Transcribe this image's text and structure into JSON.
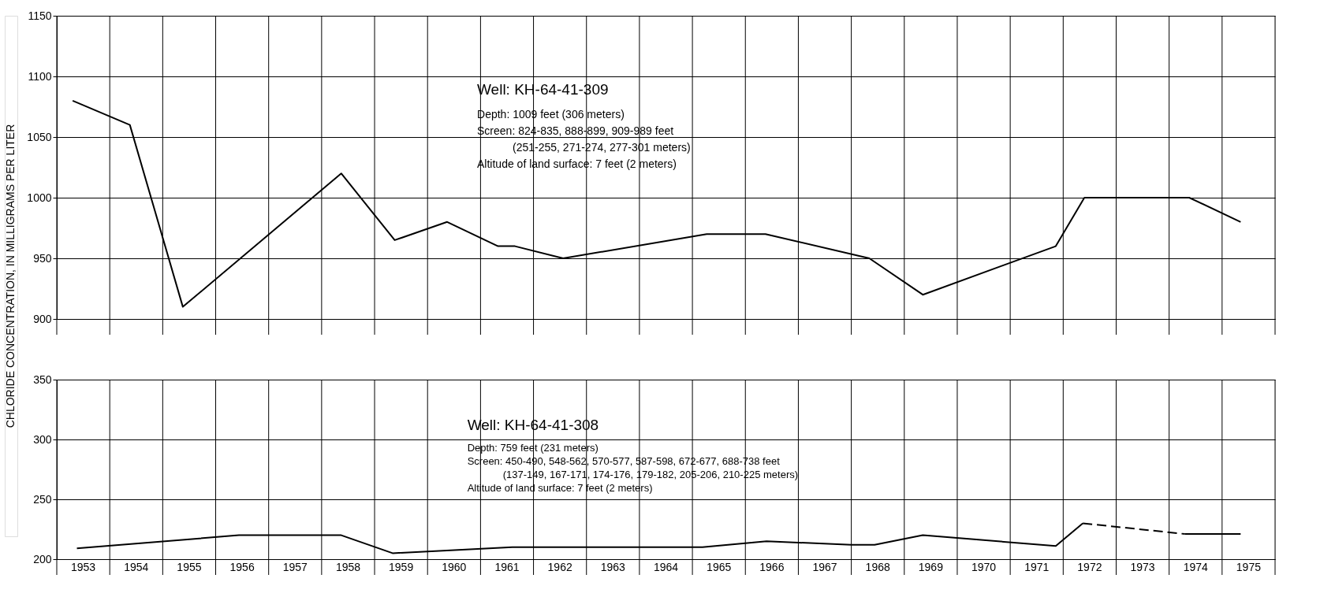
{
  "chart_data": [
    {
      "type": "line",
      "ylabel": "CHLORIDE CONCENTRATION, IN MILLIGRAMS PER LITER",
      "xlim": [
        1953,
        1976
      ],
      "ylim": [
        900,
        1150
      ],
      "yticks": [
        900,
        950,
        1000,
        1050,
        1100,
        1150
      ],
      "xticks": [
        {
          "value": 1953,
          "label": null
        },
        {
          "value": 1954,
          "label": null
        },
        {
          "value": 1955,
          "label": null
        },
        {
          "value": 1956,
          "label": null
        },
        {
          "value": 1957,
          "label": null
        },
        {
          "value": 1958,
          "label": null
        },
        {
          "value": 1959,
          "label": null
        },
        {
          "value": 1960,
          "label": null
        },
        {
          "value": 1961,
          "label": null
        },
        {
          "value": 1962,
          "label": null
        },
        {
          "value": 1963,
          "label": null
        },
        {
          "value": 1964,
          "label": null
        },
        {
          "value": 1965,
          "label": null
        },
        {
          "value": 1966,
          "label": null
        },
        {
          "value": 1967,
          "label": null
        },
        {
          "value": 1968,
          "label": null
        },
        {
          "value": 1969,
          "label": null
        },
        {
          "value": 1970,
          "label": null
        },
        {
          "value": 1971,
          "label": null
        },
        {
          "value": 1972,
          "label": null
        },
        {
          "value": 1973,
          "label": null
        },
        {
          "value": 1974,
          "label": null
        },
        {
          "value": 1975,
          "label": null
        },
        {
          "value": 1976,
          "label": null
        }
      ],
      "tick_labels": "y",
      "grid": true,
      "marker": "none",
      "annotations": [
        "Well: KH-64-41-309",
        "Depth: 1009 feet (306 meters)",
        "Screen: 824-835, 888-899, 909-989 feet",
        "(251-255, 271-274, 277-301 meters)",
        "Altitude of land surface: 7 feet (2 meters)"
      ],
      "series": [
        {
          "color": "#000000",
          "line_style": "solid",
          "x": [
            1953.3,
            1954.38,
            1955.38,
            1958.37,
            1959.38,
            1960.37,
            1961.33,
            1961.65,
            1962.56,
            1965.27,
            1966.38,
            1968.34,
            1969.35,
            1971.86,
            1972.4,
            1974.38,
            1975.35
          ],
          "values": [
            1080,
            1060,
            910,
            1020,
            965,
            980,
            960,
            960,
            950,
            970,
            970,
            950,
            920,
            960,
            1000,
            1000,
            980
          ]
        }
      ]
    },
    {
      "type": "line",
      "xlim": [
        1953,
        1976
      ],
      "ylim": [
        200,
        350
      ],
      "yticks": [
        200,
        250,
        300,
        350
      ],
      "xticks": [
        {
          "value": 1953,
          "label": null
        },
        {
          "value": 1953.5,
          "label": "1953"
        },
        {
          "value": 1954,
          "label": null
        },
        {
          "value": 1954.5,
          "label": "1954"
        },
        {
          "value": 1955,
          "label": null
        },
        {
          "value": 1955.5,
          "label": "1955"
        },
        {
          "value": 1956,
          "label": null
        },
        {
          "value": 1956.5,
          "label": "1956"
        },
        {
          "value": 1957,
          "label": null
        },
        {
          "value": 1957.5,
          "label": "1957"
        },
        {
          "value": 1958,
          "label": null
        },
        {
          "value": 1958.5,
          "label": "1958"
        },
        {
          "value": 1959,
          "label": null
        },
        {
          "value": 1959.5,
          "label": "1959"
        },
        {
          "value": 1960,
          "label": null
        },
        {
          "value": 1960.5,
          "label": "1960"
        },
        {
          "value": 1961,
          "label": null
        },
        {
          "value": 1961.5,
          "label": "1961"
        },
        {
          "value": 1962,
          "label": null
        },
        {
          "value": 1962.5,
          "label": "1962"
        },
        {
          "value": 1963,
          "label": null
        },
        {
          "value": 1963.5,
          "label": "1963"
        },
        {
          "value": 1964,
          "label": null
        },
        {
          "value": 1964.5,
          "label": "1964"
        },
        {
          "value": 1965,
          "label": null
        },
        {
          "value": 1965.5,
          "label": "1965"
        },
        {
          "value": 1966,
          "label": null
        },
        {
          "value": 1966.5,
          "label": "1966"
        },
        {
          "value": 1967,
          "label": null
        },
        {
          "value": 1967.5,
          "label": "1967"
        },
        {
          "value": 1968,
          "label": null
        },
        {
          "value": 1968.5,
          "label": "1968"
        },
        {
          "value": 1969,
          "label": null
        },
        {
          "value": 1969.5,
          "label": "1969"
        },
        {
          "value": 1970,
          "label": null
        },
        {
          "value": 1970.5,
          "label": "1970"
        },
        {
          "value": 1971,
          "label": null
        },
        {
          "value": 1971.5,
          "label": "1971"
        },
        {
          "value": 1972,
          "label": null
        },
        {
          "value": 1972.5,
          "label": "1972"
        },
        {
          "value": 1973,
          "label": null
        },
        {
          "value": 1973.5,
          "label": "1973"
        },
        {
          "value": 1974,
          "label": null
        },
        {
          "value": 1974.5,
          "label": "1974"
        },
        {
          "value": 1975,
          "label": null
        },
        {
          "value": 1975.5,
          "label": "1975"
        },
        {
          "value": 1976,
          "label": null
        }
      ],
      "grid": true,
      "marker": "none",
      "annotations": [
        "Well: KH-64-41-308",
        "Depth: 759 feet (231 meters)",
        "Screen: 450-490, 548-562, 570-577, 587-598, 672-677, 688-738 feet",
        "(137-149, 167-171, 174-176, 179-182, 205-206, 210-225 meters)",
        "Altitude of land surface: 7 feet (2 meters)"
      ],
      "series": [
        {
          "color": "#000000",
          "line_style": "solid",
          "x": [
            1953.38,
            1956.44,
            1958.37,
            1959.34,
            1961.6,
            1965.19,
            1966.4,
            1968.0,
            1968.44,
            1969.35,
            1971.86,
            1972.37
          ],
          "values": [
            209,
            220,
            220,
            205,
            210,
            210,
            215,
            212,
            212,
            220,
            211,
            230
          ]
        },
        {
          "color": "#000000",
          "line_style": "dashed",
          "x": [
            1972.37,
            1974.3
          ],
          "values": [
            230,
            221
          ]
        },
        {
          "color": "#000000",
          "line_style": "solid",
          "x": [
            1974.3,
            1975.35
          ],
          "values": [
            221,
            221
          ]
        }
      ]
    }
  ]
}
